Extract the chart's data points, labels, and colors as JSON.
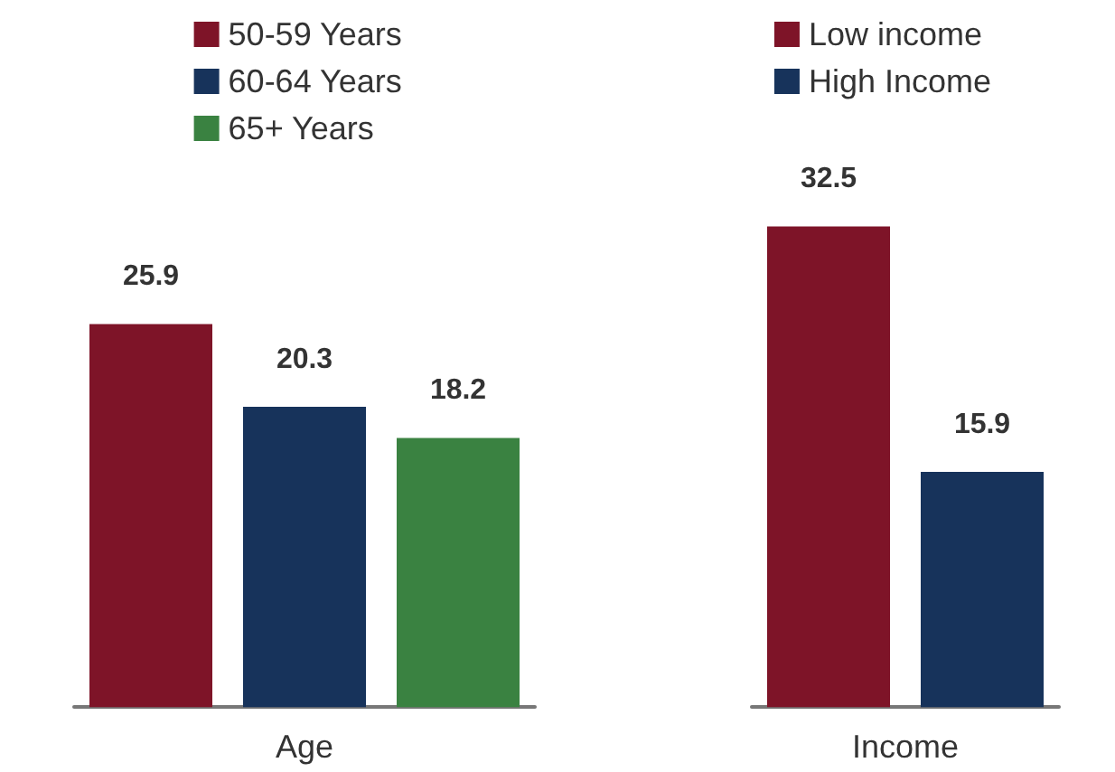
{
  "chart_data": [
    {
      "type": "bar",
      "xlabel": "Age",
      "categories": [
        null,
        null,
        null
      ],
      "stacked": true,
      "series": [
        {
          "name": "50-59 Years",
          "color": "#7e1428",
          "values": [
            25.9,
            null,
            null
          ]
        },
        {
          "name": "60-64 Years",
          "color": "#17335b",
          "values": [
            null,
            20.3,
            null
          ]
        },
        {
          "name": "65+ Years",
          "color": "#3a8241",
          "values": [
            null,
            null,
            18.2
          ]
        }
      ],
      "data_labels": true,
      "legend": "top",
      "grid": false
    },
    {
      "type": "bar",
      "xlabel": "Income",
      "categories": [
        null,
        null
      ],
      "stacked": true,
      "series": [
        {
          "name": "Low income",
          "color": "#7e1428",
          "values": [
            32.5,
            null
          ]
        },
        {
          "name": "High Income",
          "color": "#17335b",
          "values": [
            null,
            15.9
          ]
        }
      ],
      "data_labels": true,
      "legend": "top",
      "grid": false
    }
  ]
}
